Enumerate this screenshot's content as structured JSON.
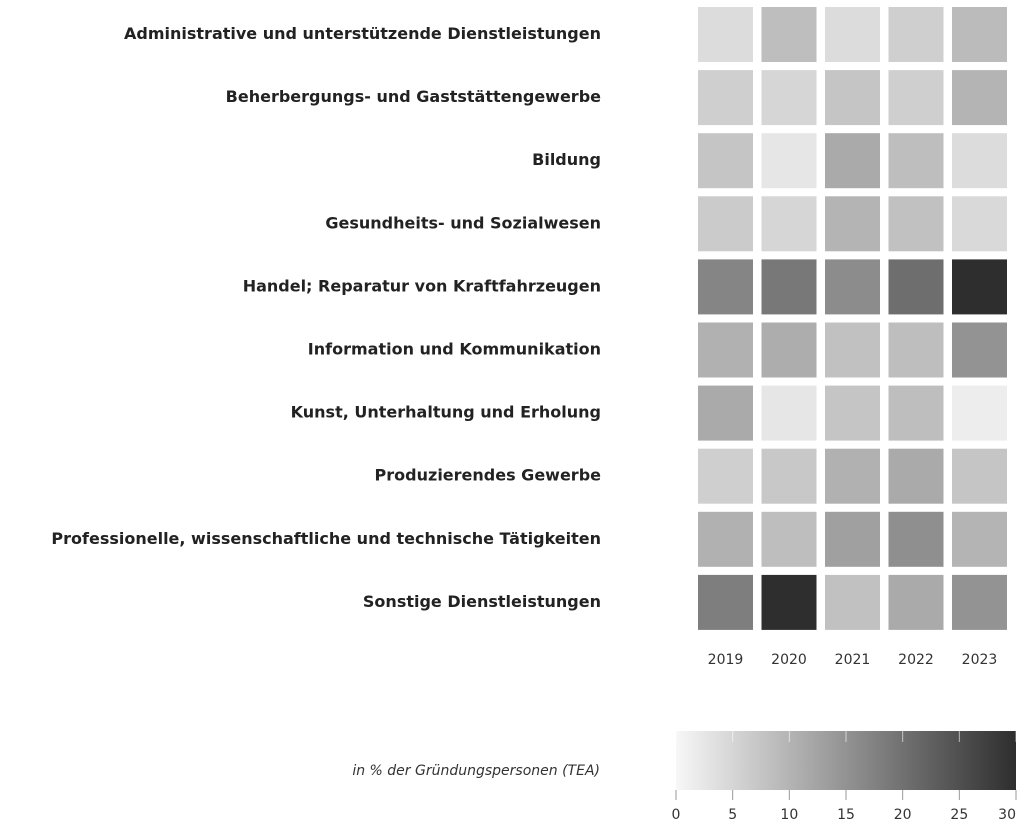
{
  "chart_data": {
    "type": "heatmap",
    "rows": [
      "Administrative und unterstützende Dienstleistungen",
      "Beherbergungs- und Gaststättengewerbe",
      "Bildung",
      "Gesundheits- und Sozialwesen",
      "Handel; Reparatur von Kraftfahrzeugen",
      "Information und Kommunikation",
      "Kunst, Unterhaltung und Erholung",
      "Produzierendes Gewerbe",
      "Professionelle, wissenschaftliche und technische Tätigkeiten",
      "Sonstige Dienstleistungen"
    ],
    "columns": [
      "2019",
      "2020",
      "2021",
      "2022",
      "2023"
    ],
    "values": [
      [
        4,
        8.5,
        4,
        6,
        9
      ],
      [
        6,
        5,
        7.5,
        6,
        10
      ],
      [
        7.5,
        2.5,
        11.5,
        8.5,
        4
      ],
      [
        6.5,
        5,
        10,
        8,
        4.5
      ],
      [
        17,
        19,
        16,
        20.5,
        30
      ],
      [
        10.5,
        11,
        8,
        8.5,
        15
      ],
      [
        11.5,
        2.5,
        7.5,
        8.5,
        1.5
      ],
      [
        6,
        7,
        10.5,
        11.5,
        7.5
      ],
      [
        10.5,
        8.5,
        13,
        15.5,
        10
      ],
      [
        18,
        30,
        8,
        11.5,
        15
      ]
    ],
    "color_low": "#f7f7f7",
    "color_high": "#2e2e2e",
    "colorbar": {
      "label": "in % der Gründungspersonen (TEA)",
      "lim": [
        0,
        30
      ],
      "ticks": [
        0,
        5,
        10,
        15,
        20,
        25,
        30
      ]
    }
  }
}
